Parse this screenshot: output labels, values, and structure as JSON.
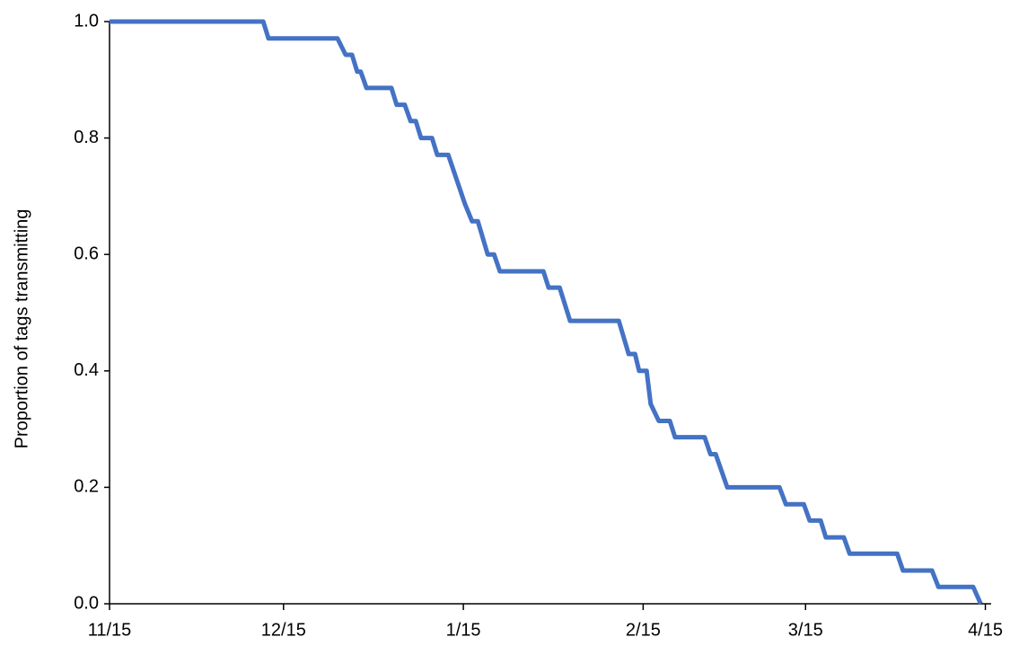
{
  "chart_data": {
    "type": "line",
    "ylabel": "Proportion of tags transmitting",
    "x": [
      0,
      26.5,
      27.4,
      39.3,
      40.7,
      41.8,
      42.7,
      43.3,
      44.3,
      48.6,
      49.5,
      50.9,
      51.9,
      52.8,
      53.7,
      55.6,
      56.5,
      58.4,
      61.3,
      62.5,
      63.5,
      65.2,
      66.3,
      67.3,
      74.8,
      75.7,
      77.6,
      79.4,
      87.8,
      89.5,
      90.6,
      91.3,
      92.6,
      93.3,
      94.7,
      96.6,
      97.5,
      102.6,
      103.6,
      104.5,
      106.5,
      115.5,
      116.6,
      119.7,
      120.7,
      122.6,
      123.5,
      126.6,
      127.6,
      135.8,
      136.8,
      141.8,
      142.9,
      148.9,
      150.2
    ],
    "values": [
      1.0,
      1.0,
      0.971,
      0.971,
      0.943,
      0.943,
      0.914,
      0.914,
      0.886,
      0.886,
      0.857,
      0.857,
      0.829,
      0.829,
      0.8,
      0.8,
      0.771,
      0.771,
      0.686,
      0.657,
      0.657,
      0.6,
      0.6,
      0.571,
      0.571,
      0.543,
      0.543,
      0.486,
      0.486,
      0.429,
      0.429,
      0.4,
      0.4,
      0.343,
      0.314,
      0.314,
      0.286,
      0.286,
      0.257,
      0.257,
      0.2,
      0.2,
      0.171,
      0.171,
      0.143,
      0.143,
      0.114,
      0.114,
      0.086,
      0.086,
      0.057,
      0.057,
      0.029,
      0.029,
      0.0
    ],
    "color": "#4472c4",
    "xlim": [
      0,
      152
    ],
    "xticks": [
      {
        "value": 0,
        "label": "11/15"
      },
      {
        "value": 30,
        "label": "12/15"
      },
      {
        "value": 61,
        "label": "1/15"
      },
      {
        "value": 92,
        "label": "2/15"
      },
      {
        "value": 120,
        "label": "3/15"
      },
      {
        "value": 151,
        "label": "4/15"
      }
    ],
    "ylim": [
      0,
      1
    ],
    "yticks": [
      {
        "value": 0,
        "label": "0.0"
      },
      {
        "value": 0.2,
        "label": "0.2"
      },
      {
        "value": 0.4,
        "label": "0.4"
      },
      {
        "value": 0.6,
        "label": "0.6"
      },
      {
        "value": 0.8,
        "label": "0.8"
      },
      {
        "value": 1,
        "label": "1.0"
      }
    ]
  }
}
